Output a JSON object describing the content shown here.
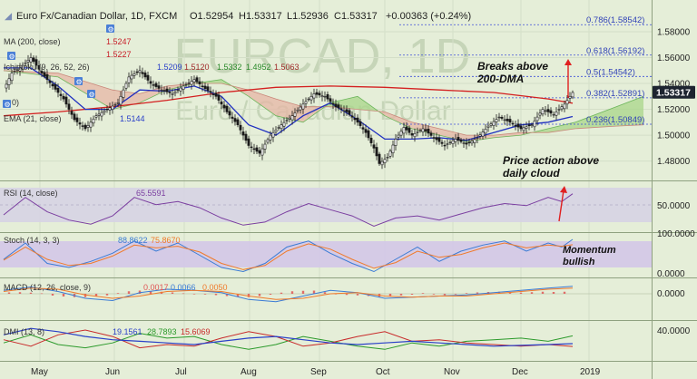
{
  "header": {
    "symbol": "Euro Fx/Canadian Dollar, 1D, FXCM",
    "open": "O1.52954",
    "high": "H1.53317",
    "low": "L1.52936",
    "close": "C1.53317",
    "change": "+0.00363 (+0.24%)"
  },
  "overlay_labels": {
    "ma200": "MA (200, close)",
    "ma200_value": "1.5247",
    "ma_other_value": "1.5227",
    "ichimoku": "Ichimoku (9, 26, 52, 26)",
    "ichimoku_values": [
      "1.5209",
      "1.5120",
      "1.5332",
      "1.4952",
      "1.5063"
    ],
    "ema": "EMA (21, close)",
    "ema_value": "1.5144",
    "fib_tail": "0)"
  },
  "watermark": {
    "line1": "EURCAD, 1D",
    "line2": "Euro / Canadian Dollar"
  },
  "annotations": {
    "breaks": [
      "Breaks above",
      "200-DMA"
    ],
    "cloud": [
      "Price action above",
      "daily cloud"
    ],
    "momentum": [
      "Momentum",
      "bullish"
    ]
  },
  "fib_levels": [
    {
      "label": "0.786(1.58542)",
      "price": 1.58542
    },
    {
      "label": "0.618(1.56192)",
      "price": 1.56192
    },
    {
      "label": "0.5(1.54542)",
      "price": 1.54542
    },
    {
      "label": "0.382(1.52891)",
      "price": 1.52891
    },
    {
      "label": "0.236(1.50849)",
      "price": 1.50849
    }
  ],
  "price_axis": {
    "ticks": [
      "1.58000",
      "1.56000",
      "1.54000",
      "1.52000",
      "1.50000",
      "1.48000"
    ],
    "last_price": "1.53317"
  },
  "panes": {
    "rsi": {
      "label": "RSI (14, close)",
      "value": "65.5591",
      "axis": "50.0000"
    },
    "stoch": {
      "label": "Stoch (14, 3, 3)",
      "values": [
        "88.8622",
        "75.8670"
      ],
      "axis_top": "100.0000",
      "axis_bottom": "0.0000"
    },
    "macd": {
      "label": "MACD (12, 26, close, 9)",
      "values": [
        "0.0017",
        "0.0066",
        "0.0050"
      ],
      "axis": "0.0000"
    },
    "dmi": {
      "label": "DMI (13, 8)",
      "values": [
        "19.1561",
        "28.7893",
        "15.6069"
      ],
      "axis": "40.0000"
    }
  },
  "time_axis": [
    "May",
    "Jun",
    "Jul",
    "Aug",
    "Sep",
    "Oct",
    "Nov",
    "Dec",
    "2019"
  ],
  "colors": {
    "background": "#e5eed8",
    "candle": "#1a1a1a",
    "ma200": "#d42020",
    "ema21": "#2030c0",
    "cloud_bull": "#a8d58a",
    "cloud_bear": "#e6b6a6",
    "fib_line": "#3d4fd8",
    "fib_text": "#3344b8",
    "rsi_line": "#7b3fa0",
    "rsi_band": "#d6d3e4",
    "stoch_band": "#d3c6e8",
    "stoch_k": "#3a7bd5",
    "stoch_d": "#f07a2a",
    "macd_hist": "#e05555",
    "dmi_plus": "#2b9a2b",
    "dmi_minus": "#c82a2a",
    "dmi_adx": "#2a40c8",
    "annotation_arrow": "#e02020",
    "last_price_bg": "#1d2430"
  },
  "chart_data": {
    "type": "candlestick",
    "symbol": "Euro Fx/Canadian Dollar",
    "interval": "1D",
    "price_range": [
      1.465,
      1.594
    ],
    "time_labels": [
      "May",
      "Jun",
      "Jul",
      "Aug",
      "Sep",
      "Oct",
      "Nov",
      "Dec",
      "2019"
    ],
    "price_path": [
      [
        0,
        1.535
      ],
      [
        3,
        1.548
      ],
      [
        6,
        1.552
      ],
      [
        10,
        1.56
      ],
      [
        14,
        1.548
      ],
      [
        18,
        1.538
      ],
      [
        22,
        1.528
      ],
      [
        26,
        1.512
      ],
      [
        30,
        1.505
      ],
      [
        34,
        1.515
      ],
      [
        38,
        1.52
      ],
      [
        42,
        1.525
      ],
      [
        46,
        1.545
      ],
      [
        50,
        1.55
      ],
      [
        54,
        1.54
      ],
      [
        58,
        1.535
      ],
      [
        62,
        1.532
      ],
      [
        66,
        1.538
      ],
      [
        70,
        1.543
      ],
      [
        74,
        1.536
      ],
      [
        78,
        1.53
      ],
      [
        82,
        1.518
      ],
      [
        86,
        1.508
      ],
      [
        90,
        1.492
      ],
      [
        94,
        1.486
      ],
      [
        98,
        1.5
      ],
      [
        102,
        1.508
      ],
      [
        106,
        1.515
      ],
      [
        110,
        1.524
      ],
      [
        114,
        1.532
      ],
      [
        118,
        1.53
      ],
      [
        122,
        1.522
      ],
      [
        126,
        1.518
      ],
      [
        130,
        1.51
      ],
      [
        133,
        1.502
      ],
      [
        136,
        1.49
      ],
      [
        138,
        1.478
      ],
      [
        141,
        1.483
      ],
      [
        144,
        1.497
      ],
      [
        147,
        1.506
      ],
      [
        150,
        1.5
      ],
      [
        154,
        1.505
      ],
      [
        158,
        1.498
      ],
      [
        162,
        1.492
      ],
      [
        166,
        1.497
      ],
      [
        170,
        1.493
      ],
      [
        174,
        1.498
      ],
      [
        178,
        1.507
      ],
      [
        182,
        1.514
      ],
      [
        186,
        1.51
      ],
      [
        190,
        1.505
      ],
      [
        194,
        1.508
      ],
      [
        198,
        1.52
      ],
      [
        202,
        1.516
      ],
      [
        206,
        1.524
      ],
      [
        209,
        1.533
      ]
    ],
    "ma200_path": [
      [
        0,
        1.515
      ],
      [
        20,
        1.518
      ],
      [
        40,
        1.522
      ],
      [
        60,
        1.527
      ],
      [
        80,
        1.533
      ],
      [
        100,
        1.537
      ],
      [
        120,
        1.538
      ],
      [
        140,
        1.537
      ],
      [
        160,
        1.535
      ],
      [
        180,
        1.533
      ],
      [
        200,
        1.528
      ],
      [
        209,
        1.5247
      ]
    ],
    "ema21_path": [
      [
        0,
        1.552
      ],
      [
        10,
        1.552
      ],
      [
        20,
        1.538
      ],
      [
        30,
        1.52
      ],
      [
        40,
        1.52
      ],
      [
        50,
        1.535
      ],
      [
        60,
        1.534
      ],
      [
        70,
        1.538
      ],
      [
        80,
        1.53
      ],
      [
        90,
        1.508
      ],
      [
        100,
        1.5
      ],
      [
        110,
        1.515
      ],
      [
        120,
        1.525
      ],
      [
        130,
        1.512
      ],
      [
        140,
        1.497
      ],
      [
        150,
        1.497
      ],
      [
        160,
        1.498
      ],
      [
        170,
        1.496
      ],
      [
        180,
        1.502
      ],
      [
        190,
        1.508
      ],
      [
        200,
        1.51
      ],
      [
        209,
        1.5144
      ]
    ],
    "cloud_span_a": [
      [
        0,
        1.55
      ],
      [
        20,
        1.545
      ],
      [
        40,
        1.52
      ],
      [
        50,
        1.525
      ],
      [
        60,
        1.535
      ],
      [
        70,
        1.54
      ],
      [
        80,
        1.543
      ],
      [
        90,
        1.53
      ],
      [
        100,
        1.515
      ],
      [
        110,
        1.51
      ],
      [
        120,
        1.525
      ],
      [
        130,
        1.53
      ],
      [
        140,
        1.515
      ],
      [
        150,
        1.505
      ],
      [
        160,
        1.5
      ],
      [
        170,
        1.495
      ],
      [
        180,
        1.498
      ],
      [
        190,
        1.5
      ],
      [
        200,
        1.505
      ],
      [
        210,
        1.51
      ],
      [
        225,
        1.522
      ],
      [
        235,
        1.53
      ]
    ],
    "cloud_span_b": [
      [
        0,
        1.55
      ],
      [
        20,
        1.548
      ],
      [
        40,
        1.535
      ],
      [
        50,
        1.532
      ],
      [
        60,
        1.538
      ],
      [
        70,
        1.54
      ],
      [
        80,
        1.54
      ],
      [
        90,
        1.535
      ],
      [
        100,
        1.528
      ],
      [
        110,
        1.522
      ],
      [
        120,
        1.522
      ],
      [
        130,
        1.52
      ],
      [
        140,
        1.518
      ],
      [
        150,
        1.51
      ],
      [
        160,
        1.505
      ],
      [
        170,
        1.5
      ],
      [
        180,
        1.5
      ],
      [
        190,
        1.502
      ],
      [
        200,
        1.502
      ],
      [
        210,
        1.505
      ],
      [
        225,
        1.507
      ],
      [
        235,
        1.508
      ]
    ],
    "rsi_range": [
      30,
      75
    ],
    "rsi_path": [
      [
        0,
        45
      ],
      [
        8,
        62
      ],
      [
        16,
        48
      ],
      [
        24,
        40
      ],
      [
        32,
        36
      ],
      [
        40,
        44
      ],
      [
        48,
        62
      ],
      [
        56,
        55
      ],
      [
        64,
        58
      ],
      [
        72,
        52
      ],
      [
        80,
        42
      ],
      [
        88,
        35
      ],
      [
        96,
        38
      ],
      [
        104,
        48
      ],
      [
        112,
        56
      ],
      [
        120,
        50
      ],
      [
        128,
        44
      ],
      [
        136,
        34
      ],
      [
        144,
        42
      ],
      [
        152,
        44
      ],
      [
        160,
        40
      ],
      [
        168,
        46
      ],
      [
        176,
        52
      ],
      [
        184,
        56
      ],
      [
        192,
        54
      ],
      [
        200,
        62
      ],
      [
        205,
        58
      ],
      [
        209,
        65.5591
      ]
    ],
    "stoch_range": [
      0,
      100
    ],
    "stoch_k_path": [
      [
        0,
        40
      ],
      [
        8,
        80
      ],
      [
        16,
        30
      ],
      [
        24,
        20
      ],
      [
        32,
        35
      ],
      [
        40,
        55
      ],
      [
        48,
        85
      ],
      [
        56,
        60
      ],
      [
        64,
        80
      ],
      [
        72,
        50
      ],
      [
        80,
        20
      ],
      [
        88,
        10
      ],
      [
        96,
        30
      ],
      [
        104,
        70
      ],
      [
        112,
        85
      ],
      [
        120,
        55
      ],
      [
        128,
        30
      ],
      [
        136,
        10
      ],
      [
        144,
        40
      ],
      [
        152,
        70
      ],
      [
        160,
        35
      ],
      [
        168,
        60
      ],
      [
        176,
        75
      ],
      [
        184,
        85
      ],
      [
        192,
        60
      ],
      [
        200,
        80
      ],
      [
        205,
        70
      ],
      [
        209,
        88.8622
      ]
    ],
    "stoch_d_path": [
      [
        0,
        38
      ],
      [
        8,
        70
      ],
      [
        16,
        40
      ],
      [
        24,
        25
      ],
      [
        32,
        30
      ],
      [
        40,
        48
      ],
      [
        48,
        75
      ],
      [
        56,
        68
      ],
      [
        64,
        72
      ],
      [
        72,
        58
      ],
      [
        80,
        30
      ],
      [
        88,
        15
      ],
      [
        96,
        25
      ],
      [
        104,
        60
      ],
      [
        112,
        78
      ],
      [
        120,
        65
      ],
      [
        128,
        40
      ],
      [
        136,
        18
      ],
      [
        144,
        32
      ],
      [
        152,
        60
      ],
      [
        160,
        45
      ],
      [
        168,
        52
      ],
      [
        176,
        68
      ],
      [
        184,
        80
      ],
      [
        192,
        68
      ],
      [
        200,
        75
      ],
      [
        205,
        72
      ],
      [
        209,
        75.867
      ]
    ],
    "macd_range": [
      -0.012,
      0.012
    ],
    "macd_path": [
      [
        0,
        0.003
      ],
      [
        10,
        0.006
      ],
      [
        20,
        0.002
      ],
      [
        30,
        -0.004
      ],
      [
        40,
        -0.006
      ],
      [
        50,
        0.001
      ],
      [
        60,
        0.004
      ],
      [
        70,
        0.003
      ],
      [
        80,
        0.001
      ],
      [
        90,
        -0.005
      ],
      [
        100,
        -0.007
      ],
      [
        110,
        -0.002
      ],
      [
        120,
        0.003
      ],
      [
        130,
        0.001
      ],
      [
        140,
        -0.004
      ],
      [
        150,
        -0.003
      ],
      [
        160,
        -0.002
      ],
      [
        170,
        -0.001
      ],
      [
        180,
        0.001
      ],
      [
        190,
        0.003
      ],
      [
        200,
        0.005
      ],
      [
        209,
        0.0066
      ]
    ],
    "macd_signal_path": [
      [
        0,
        0.002
      ],
      [
        10,
        0.005
      ],
      [
        20,
        0.004
      ],
      [
        30,
        -0.001
      ],
      [
        40,
        -0.004
      ],
      [
        50,
        -0.002
      ],
      [
        60,
        0.002
      ],
      [
        70,
        0.003
      ],
      [
        80,
        0.002
      ],
      [
        90,
        -0.002
      ],
      [
        100,
        -0.005
      ],
      [
        110,
        -0.004
      ],
      [
        120,
        0.0
      ],
      [
        130,
        0.001
      ],
      [
        140,
        -0.002
      ],
      [
        150,
        -0.003
      ],
      [
        160,
        -0.002
      ],
      [
        170,
        -0.002
      ],
      [
        180,
        0.0
      ],
      [
        190,
        0.002
      ],
      [
        200,
        0.004
      ],
      [
        209,
        0.005
      ]
    ],
    "macd_histogram": [
      [
        2,
        0.0012
      ],
      [
        6,
        0.0014
      ],
      [
        10,
        0.001
      ],
      [
        14,
        0.0004
      ],
      [
        18,
        -0.0016
      ],
      [
        22,
        -0.0024
      ],
      [
        26,
        -0.003
      ],
      [
        30,
        -0.003
      ],
      [
        34,
        -0.0022
      ],
      [
        38,
        -0.0014
      ],
      [
        42,
        0.0006
      ],
      [
        46,
        0.0022
      ],
      [
        50,
        0.0028
      ],
      [
        54,
        0.0022
      ],
      [
        58,
        0.0018
      ],
      [
        62,
        0.0012
      ],
      [
        66,
        0.0004
      ],
      [
        70,
        0.0
      ],
      [
        74,
        -0.0006
      ],
      [
        78,
        -0.0012
      ],
      [
        82,
        -0.002
      ],
      [
        86,
        -0.0026
      ],
      [
        90,
        -0.003
      ],
      [
        94,
        -0.002
      ],
      [
        98,
        -0.0008
      ],
      [
        102,
        0.001
      ],
      [
        106,
        0.0022
      ],
      [
        110,
        0.0026
      ],
      [
        114,
        0.0028
      ],
      [
        118,
        0.0014
      ],
      [
        122,
        0.0
      ],
      [
        126,
        -0.001
      ],
      [
        130,
        -0.0014
      ],
      [
        134,
        -0.002
      ],
      [
        138,
        -0.0026
      ],
      [
        142,
        -0.0024
      ],
      [
        146,
        -0.0014
      ],
      [
        150,
        -0.0008
      ],
      [
        154,
        0.0006
      ],
      [
        158,
        -0.0006
      ],
      [
        162,
        -0.0012
      ],
      [
        166,
        -0.0006
      ],
      [
        170,
        0.0006
      ],
      [
        174,
        0.0012
      ],
      [
        178,
        0.0016
      ],
      [
        182,
        0.0018
      ],
      [
        186,
        0.0014
      ],
      [
        190,
        0.001
      ],
      [
        194,
        0.0014
      ],
      [
        198,
        0.0018
      ],
      [
        202,
        0.0016
      ],
      [
        206,
        0.0018
      ]
    ],
    "dmi_range": [
      0,
      45
    ],
    "dmi_plus_path": [
      [
        0,
        20
      ],
      [
        10,
        30
      ],
      [
        20,
        18
      ],
      [
        30,
        14
      ],
      [
        40,
        20
      ],
      [
        50,
        32
      ],
      [
        60,
        26
      ],
      [
        70,
        28
      ],
      [
        80,
        18
      ],
      [
        90,
        12
      ],
      [
        100,
        18
      ],
      [
        110,
        28
      ],
      [
        120,
        22
      ],
      [
        130,
        16
      ],
      [
        140,
        12
      ],
      [
        150,
        20
      ],
      [
        160,
        16
      ],
      [
        170,
        22
      ],
      [
        180,
        24
      ],
      [
        190,
        26
      ],
      [
        200,
        22
      ],
      [
        209,
        28.7893
      ]
    ],
    "dmi_minus_path": [
      [
        0,
        24
      ],
      [
        10,
        16
      ],
      [
        20,
        30
      ],
      [
        30,
        36
      ],
      [
        40,
        28
      ],
      [
        50,
        14
      ],
      [
        60,
        18
      ],
      [
        70,
        16
      ],
      [
        80,
        26
      ],
      [
        90,
        34
      ],
      [
        100,
        28
      ],
      [
        110,
        16
      ],
      [
        120,
        20
      ],
      [
        130,
        28
      ],
      [
        140,
        34
      ],
      [
        150,
        22
      ],
      [
        160,
        24
      ],
      [
        170,
        20
      ],
      [
        180,
        18
      ],
      [
        190,
        16
      ],
      [
        200,
        18
      ],
      [
        209,
        15.6069
      ]
    ],
    "dmi_adx_path": [
      [
        0,
        30
      ],
      [
        10,
        38
      ],
      [
        20,
        34
      ],
      [
        30,
        28
      ],
      [
        40,
        24
      ],
      [
        50,
        22
      ],
      [
        60,
        20
      ],
      [
        70,
        18
      ],
      [
        80,
        22
      ],
      [
        90,
        26
      ],
      [
        100,
        28
      ],
      [
        110,
        24
      ],
      [
        120,
        20
      ],
      [
        130,
        18
      ],
      [
        140,
        20
      ],
      [
        150,
        22
      ],
      [
        160,
        20
      ],
      [
        170,
        18
      ],
      [
        180,
        16
      ],
      [
        190,
        17
      ],
      [
        200,
        18
      ],
      [
        209,
        19.1561
      ]
    ]
  }
}
